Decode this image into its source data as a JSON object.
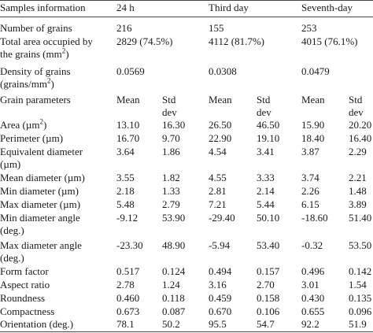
{
  "table": {
    "header": [
      "Samples information",
      "24 h",
      "Third day",
      "Seventh-day"
    ],
    "rows": [
      {
        "label": "Number of grains",
        "values": [
          "216",
          "155",
          "253"
        ]
      },
      {
        "label": [
          "Total area occupied by",
          "the grains (mm",
          "2",
          ")"
        ],
        "values": [
          "2829 (74.5%)",
          "4112 (81.7%)",
          "4015 (76.1%)"
        ]
      },
      {
        "label": [
          "Density of grains",
          "(grains/mm",
          "2",
          ")"
        ],
        "values": [
          "0.0569",
          "0.0308",
          "0.0479"
        ]
      },
      {
        "label": "Grain parameters",
        "sublabels": [
          "Mean",
          "Std",
          "dev"
        ]
      },
      {
        "label": [
          "Area (µm",
          "2",
          ")"
        ],
        "values": [
          "13.10",
          "16.30",
          "26.50",
          "46.50",
          "15.90",
          "20.20"
        ]
      },
      {
        "label": "Perimeter (µm)",
        "values": [
          "16.70",
          "9.70",
          "22.90",
          "19.10",
          "18.40",
          "16.40"
        ]
      },
      {
        "label": [
          "Equivalent diameter",
          "(µm)"
        ],
        "values": [
          "3.64",
          "1.86",
          "4.54",
          "3.41",
          "3.87",
          "2.29"
        ]
      },
      {
        "label": "Mean diameter (µm)",
        "values": [
          "3.55",
          "1.82",
          "4.55",
          "3.33",
          "3.74",
          "2.21"
        ]
      },
      {
        "label": "Min diameter (µm)",
        "values": [
          "2.18",
          "1.33",
          "2.81",
          "2.14",
          "2.26",
          "1.48"
        ]
      },
      {
        "label": "Max diameter (µm)",
        "values": [
          "5.48",
          "2.79",
          "7.21",
          "5.44",
          "6.15",
          "3.89"
        ]
      },
      {
        "label": [
          "Min diameter angle",
          "(deg.)"
        ],
        "values": [
          "-9.12",
          "53.90",
          "-29.40",
          "50.10",
          "-18.60",
          "51.40"
        ]
      },
      {
        "label": [
          "Max diameter angle",
          "(deg.)"
        ],
        "values": [
          "-23.30",
          "48.90",
          "-5.94",
          "53.40",
          "-0.32",
          "53.50"
        ]
      },
      {
        "label": "Form factor",
        "values": [
          "0.517",
          "0.124",
          "0.494",
          "0.157",
          "0.496",
          "0.142"
        ]
      },
      {
        "label": "Aspect ratio",
        "values": [
          "2.78",
          "1.24",
          "3.16",
          "2.70",
          "3.01",
          "1.54"
        ]
      },
      {
        "label": "Roundness",
        "values": [
          "0.460",
          "0.118",
          "0.459",
          "0.158",
          "0.430",
          "0.135"
        ]
      },
      {
        "label": "Compactness",
        "values": [
          "0.673",
          "0.087",
          "0.670",
          "0.106",
          "0.655",
          "0.096"
        ]
      },
      {
        "label": "Orientation (deg.)",
        "values": [
          "78.1",
          "50.2",
          "95.5",
          "54.7",
          "92.2",
          "51.9"
        ]
      }
    ]
  }
}
